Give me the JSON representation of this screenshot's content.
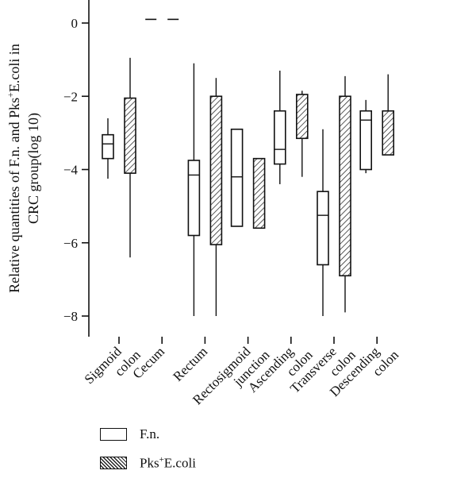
{
  "chart_data": {
    "type": "box",
    "ylabel_line1": "Relative quantities of F.n. and Pks",
    "ylabel_sup": "+",
    "ylabel_line1_tail": "E.coli in",
    "ylabel_line2": "CRC group(log 10)",
    "ylim": [
      -8.6,
      0.7
    ],
    "yticks": [
      0,
      -2,
      -4,
      -6,
      -8
    ],
    "categories": [
      {
        "lines": [
          "Sigmoid",
          "colon"
        ]
      },
      {
        "lines": [
          "Cecum"
        ]
      },
      {
        "lines": [
          "Rectum"
        ]
      },
      {
        "lines": [
          "Rectosigmoid",
          "junction"
        ]
      },
      {
        "lines": [
          "Ascending",
          "colon"
        ]
      },
      {
        "lines": [
          "Transverse",
          "colon"
        ]
      },
      {
        "lines": [
          "Descending",
          "colon"
        ]
      }
    ],
    "series": [
      {
        "name": "F.n.",
        "pattern": "open",
        "boxes": [
          {
            "min": -4.25,
            "q1": -3.7,
            "median": -3.3,
            "q3": -3.05,
            "max": -2.6
          },
          {
            "single": 0.1
          },
          {
            "min": -8.0,
            "q1": -5.8,
            "median": -4.15,
            "q3": -3.75,
            "max": -1.1
          },
          {
            "min": -5.55,
            "q1": -5.55,
            "median": -4.2,
            "q3": -2.9,
            "max": -2.9
          },
          {
            "min": -4.4,
            "q1": -3.85,
            "median": -3.45,
            "q3": -2.4,
            "max": -1.3
          },
          {
            "min": -8.0,
            "q1": -6.6,
            "median": -5.25,
            "q3": -4.6,
            "max": -2.9
          },
          {
            "min": -4.1,
            "q1": -4.0,
            "median": -2.65,
            "q3": -2.4,
            "max": -2.1
          }
        ]
      },
      {
        "name": "Pks+E.coli",
        "pattern": "hatched",
        "boxes": [
          {
            "min": -6.4,
            "q1": -4.1,
            "median": -2.05,
            "q3": -2.05,
            "max": -0.95
          },
          {
            "single": 0.1
          },
          {
            "min": -8.0,
            "q1": -6.05,
            "median": -2.0,
            "q3": -2.0,
            "max": -1.5
          },
          {
            "min": -5.6,
            "q1": -5.6,
            "median": -3.7,
            "q3": -3.7,
            "max": -3.7
          },
          {
            "min": -4.2,
            "q1": -3.15,
            "median": -1.95,
            "q3": -1.95,
            "max": -1.85
          },
          {
            "min": -7.9,
            "q1": -6.9,
            "median": -2.0,
            "q3": -2.0,
            "max": -1.45
          },
          {
            "min": -3.6,
            "q1": -3.6,
            "median": -2.4,
            "q3": -2.4,
            "max": -1.4
          }
        ]
      }
    ]
  },
  "legend": {
    "fn_label": "F.n.",
    "pks_prefix": "Pks",
    "pks_sup": "+",
    "pks_suffix": "E.coli"
  }
}
